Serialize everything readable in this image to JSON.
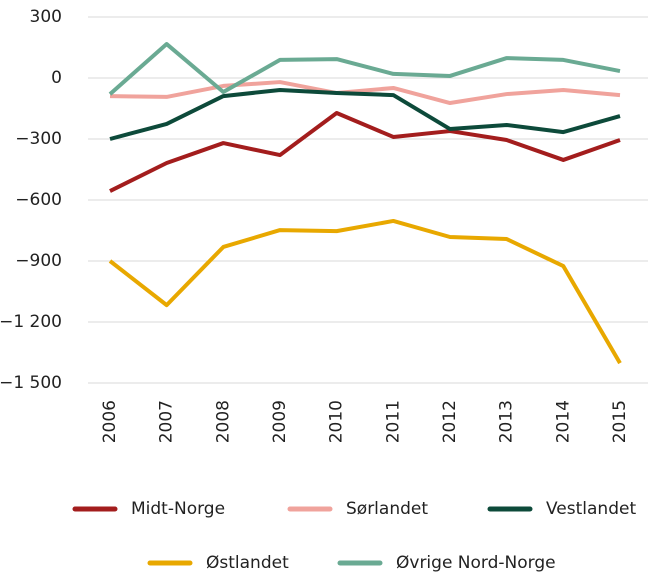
{
  "chart_data": {
    "type": "line",
    "categories": [
      "2006",
      "2007",
      "2008",
      "2009",
      "2010",
      "2011",
      "2012",
      "2013",
      "2014",
      "2015"
    ],
    "ylim": [
      -1500,
      300
    ],
    "yticks": [
      300,
      0,
      {
        "value": -300,
        "label": "−300"
      },
      {
        "value": -600,
        "label": "−600"
      },
      {
        "value": -900,
        "label": "−900"
      },
      {
        "value": -1200,
        "label": "−1 200"
      },
      {
        "value": -1500,
        "label": "−1 500"
      }
    ],
    "grid": true,
    "series": [
      {
        "name": "Midt-Norge",
        "color": "#a31d1d",
        "values": [
          -556,
          -418,
          -320,
          -379,
          -172,
          -290,
          -261,
          -305,
          -403,
          -305
        ]
      },
      {
        "name": "Sørlandet",
        "color": "#f0a39c",
        "values": [
          -89,
          -93,
          -39,
          -20,
          -74,
          -49,
          -123,
          -79,
          -59,
          -84
        ]
      },
      {
        "name": "Vestlandet",
        "color": "#0d4a3a",
        "values": [
          -300,
          -226,
          -89,
          -59,
          -74,
          -84,
          -251,
          -231,
          -266,
          -187
        ]
      },
      {
        "name": "Østlandet",
        "color": "#e8a800",
        "values": [
          -900,
          -1117,
          -831,
          -748,
          -753,
          -703,
          -782,
          -792,
          -925,
          -1402
        ]
      },
      {
        "name": "Øvrige Nord-Norge",
        "color": "#6aaa93",
        "values": [
          -79,
          167,
          -69,
          89,
          93,
          20,
          10,
          98,
          89,
          34
        ]
      }
    ]
  }
}
